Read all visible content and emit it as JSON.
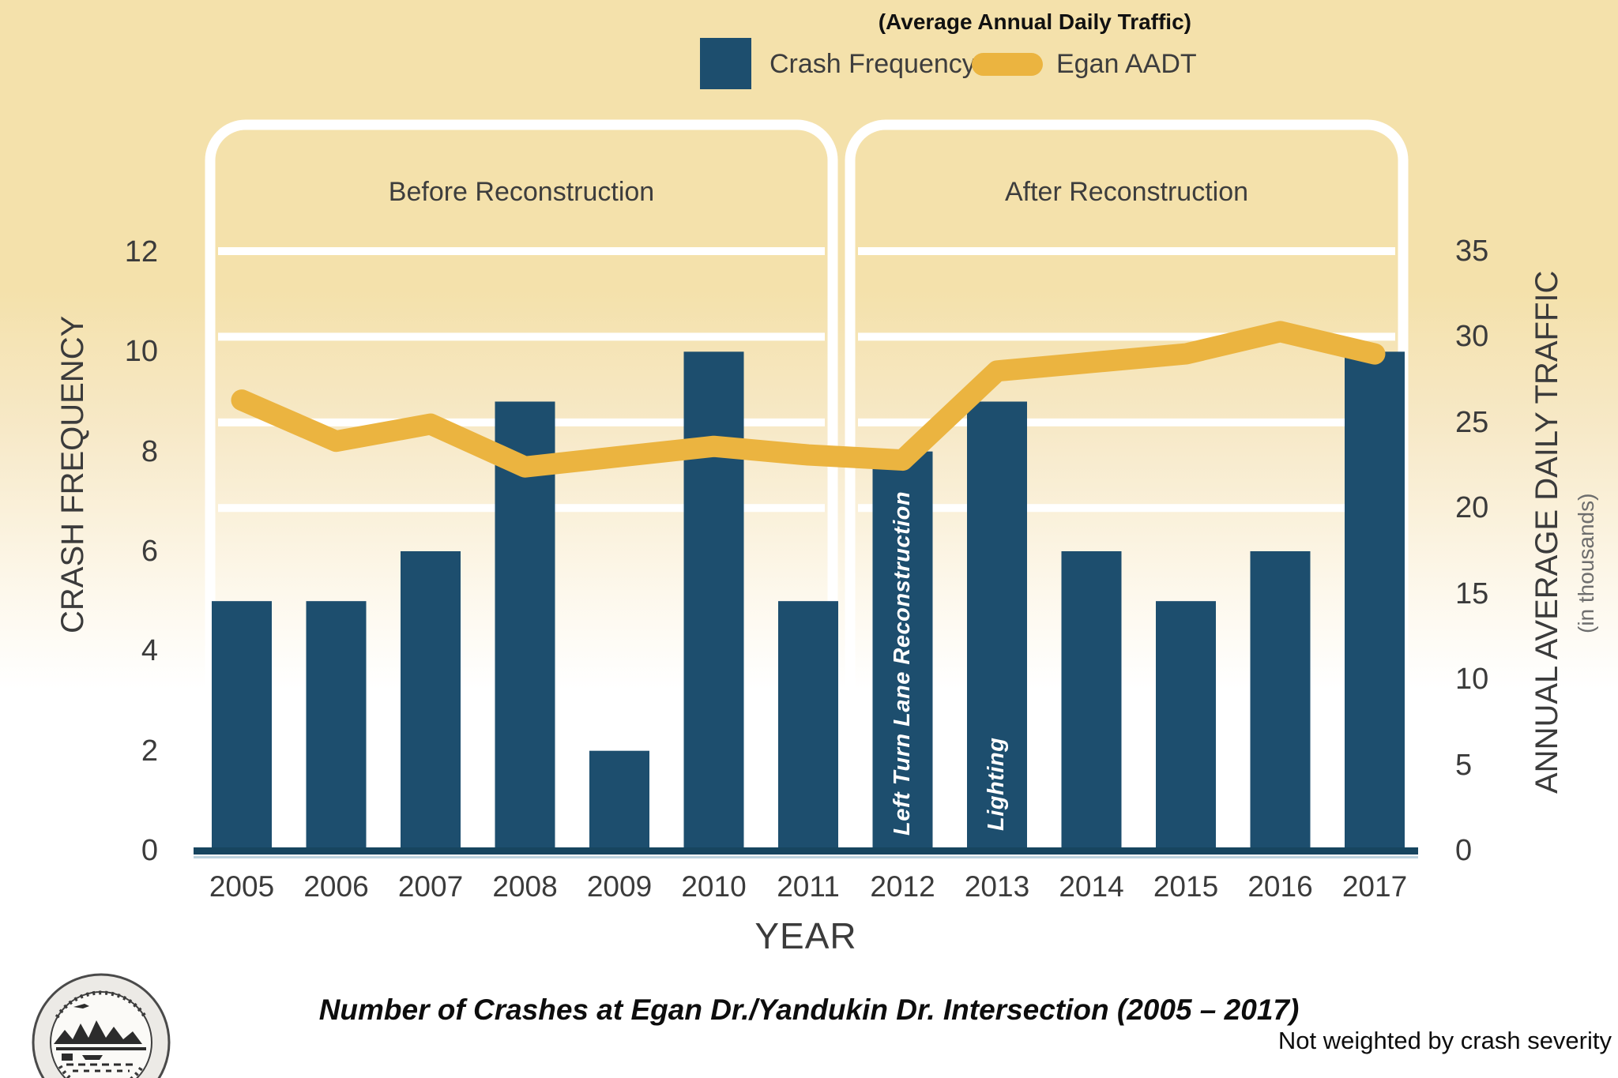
{
  "ui": {
    "header_note": "(Average Annual Daily Traffic)",
    "legend": {
      "bar_label": "Crash Frequency",
      "line_label": "Egan AADT"
    },
    "axis_left_title": "CRASH FREQUENCY",
    "axis_right_title": "ANNUAL AVERAGE DAILY TRAFFIC",
    "axis_right_subtitle": "(in thousands)",
    "xlabel": "YEAR",
    "caption": "Number of Crashes at Egan Dr./Yandukin Dr. Intersection (2005 – 2017)",
    "footnote": "Not weighted by crash severity"
  },
  "chart_data": {
    "type": "bar+line",
    "title": "Number of Crashes at Egan Dr./Yandukin Dr. Intersection (2005 – 2017)",
    "categories": [
      2005,
      2006,
      2007,
      2008,
      2009,
      2010,
      2011,
      2012,
      2013,
      2014,
      2015,
      2016,
      2017
    ],
    "series": [
      {
        "name": "Crash Frequency",
        "type": "bar",
        "axis": "left",
        "values": [
          5,
          5,
          6,
          9,
          2,
          10,
          5,
          8,
          9,
          6,
          5,
          6,
          10
        ]
      },
      {
        "name": "Egan AADT",
        "type": "line",
        "axis": "right",
        "unit": "thousands of vehicles/day",
        "values": [
          26.3,
          23.9,
          24.9,
          22.4,
          23.0,
          23.6,
          23.1,
          22.8,
          28.0,
          28.5,
          29.0,
          30.3,
          29.0
        ]
      }
    ],
    "xlabel": "YEAR",
    "ylabel_left": "CRASH FREQUENCY",
    "ylabel_right": "ANNUAL AVERAGE DAILY TRAFFIC (in thousands)",
    "ylim_left": [
      0,
      12
    ],
    "ylim_right": [
      0,
      35
    ],
    "yticks_left": [
      0,
      2,
      4,
      6,
      8,
      10,
      12
    ],
    "yticks_right": [
      0,
      5,
      10,
      15,
      20,
      25,
      30,
      35
    ],
    "gridlines_right_values": [
      20,
      25,
      30,
      35
    ],
    "legend_position": "top-right",
    "phases": [
      {
        "label": "Before Reconstruction",
        "from": 2005,
        "to": 2011
      },
      {
        "label": "After Reconstruction",
        "from": 2012,
        "to": 2017
      }
    ],
    "annotations": [
      {
        "year": 2012,
        "text": "Left Turn Lane Reconstruction"
      },
      {
        "year": 2013,
        "text": "Lighting"
      }
    ],
    "colors": {
      "bar": "#1d4e6e",
      "line": "#ebb440",
      "grid": "#ffffff",
      "baseline": "#17455f"
    }
  }
}
